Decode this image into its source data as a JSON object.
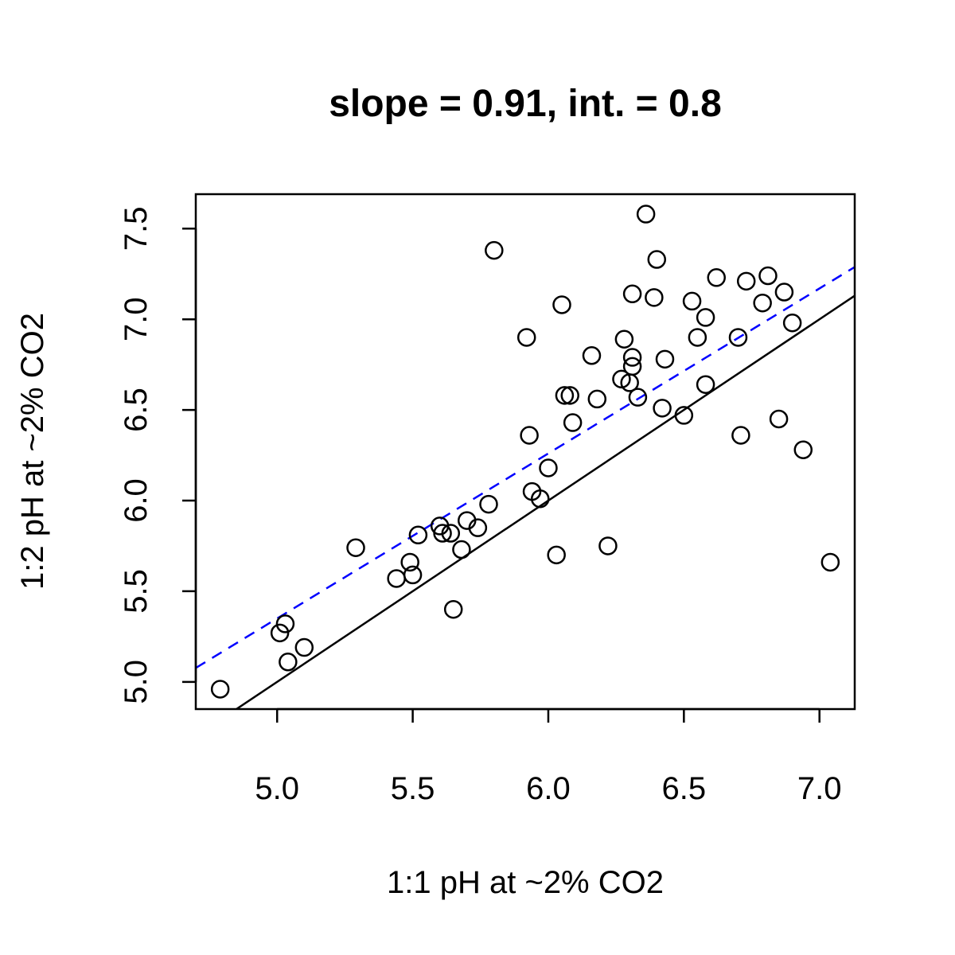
{
  "chart_data": {
    "type": "scatter",
    "title": "slope = 0.91, int. = 0.8",
    "xlabel": "1:1 pH at ~2% CO2",
    "ylabel": "1:2 pH at ~2% CO2",
    "xlim": [
      4.7,
      7.13
    ],
    "ylim": [
      4.85,
      7.69
    ],
    "xticks": [
      5.0,
      5.5,
      6.0,
      6.5,
      7.0
    ],
    "xtick_labels": [
      "5.0",
      "5.5",
      "6.0",
      "6.5",
      "7.0"
    ],
    "yticks": [
      5.0,
      5.5,
      6.0,
      6.5,
      7.0,
      7.5
    ],
    "ytick_labels": [
      "5.0",
      "5.5",
      "6.0",
      "6.5",
      "7.0",
      "7.5"
    ],
    "grid": false,
    "points": [
      {
        "x": 4.79,
        "y": 4.96
      },
      {
        "x": 5.01,
        "y": 5.27
      },
      {
        "x": 5.03,
        "y": 5.32
      },
      {
        "x": 5.04,
        "y": 5.11
      },
      {
        "x": 5.1,
        "y": 5.19
      },
      {
        "x": 5.29,
        "y": 5.74
      },
      {
        "x": 5.44,
        "y": 5.57
      },
      {
        "x": 5.49,
        "y": 5.66
      },
      {
        "x": 5.5,
        "y": 5.59
      },
      {
        "x": 5.52,
        "y": 5.81
      },
      {
        "x": 5.6,
        "y": 5.86
      },
      {
        "x": 5.61,
        "y": 5.82
      },
      {
        "x": 5.64,
        "y": 5.82
      },
      {
        "x": 5.65,
        "y": 5.4
      },
      {
        "x": 5.68,
        "y": 5.73
      },
      {
        "x": 5.7,
        "y": 5.89
      },
      {
        "x": 5.74,
        "y": 5.85
      },
      {
        "x": 5.78,
        "y": 5.98
      },
      {
        "x": 5.8,
        "y": 7.38
      },
      {
        "x": 5.92,
        "y": 6.9
      },
      {
        "x": 5.93,
        "y": 6.36
      },
      {
        "x": 5.94,
        "y": 6.05
      },
      {
        "x": 5.97,
        "y": 6.01
      },
      {
        "x": 6.0,
        "y": 6.18
      },
      {
        "x": 6.03,
        "y": 5.7
      },
      {
        "x": 6.05,
        "y": 7.08
      },
      {
        "x": 6.06,
        "y": 6.58
      },
      {
        "x": 6.08,
        "y": 6.58
      },
      {
        "x": 6.09,
        "y": 6.43
      },
      {
        "x": 6.16,
        "y": 6.8
      },
      {
        "x": 6.18,
        "y": 6.56
      },
      {
        "x": 6.22,
        "y": 5.75
      },
      {
        "x": 6.27,
        "y": 6.67
      },
      {
        "x": 6.28,
        "y": 6.89
      },
      {
        "x": 6.3,
        "y": 6.65
      },
      {
        "x": 6.31,
        "y": 7.14
      },
      {
        "x": 6.31,
        "y": 6.79
      },
      {
        "x": 6.31,
        "y": 6.74
      },
      {
        "x": 6.33,
        "y": 6.57
      },
      {
        "x": 6.36,
        "y": 7.58
      },
      {
        "x": 6.39,
        "y": 7.12
      },
      {
        "x": 6.4,
        "y": 7.33
      },
      {
        "x": 6.42,
        "y": 6.51
      },
      {
        "x": 6.43,
        "y": 6.78
      },
      {
        "x": 6.5,
        "y": 6.47
      },
      {
        "x": 6.53,
        "y": 7.1
      },
      {
        "x": 6.55,
        "y": 6.9
      },
      {
        "x": 6.58,
        "y": 7.01
      },
      {
        "x": 6.58,
        "y": 6.64
      },
      {
        "x": 6.62,
        "y": 7.23
      },
      {
        "x": 6.7,
        "y": 6.9
      },
      {
        "x": 6.71,
        "y": 6.36
      },
      {
        "x": 6.73,
        "y": 7.21
      },
      {
        "x": 6.79,
        "y": 7.09
      },
      {
        "x": 6.81,
        "y": 7.24
      },
      {
        "x": 6.85,
        "y": 6.45
      },
      {
        "x": 6.87,
        "y": 7.15
      },
      {
        "x": 6.9,
        "y": 6.98
      },
      {
        "x": 6.94,
        "y": 6.28
      },
      {
        "x": 7.04,
        "y": 5.66
      }
    ],
    "lines": [
      {
        "kind": "identity",
        "slope": 1.0,
        "intercept": 0.0,
        "color": "#000000",
        "dash": "solid"
      },
      {
        "kind": "fit",
        "slope": 0.91,
        "intercept": 0.8,
        "color": "#0000ff",
        "dash": "dashed"
      }
    ]
  }
}
